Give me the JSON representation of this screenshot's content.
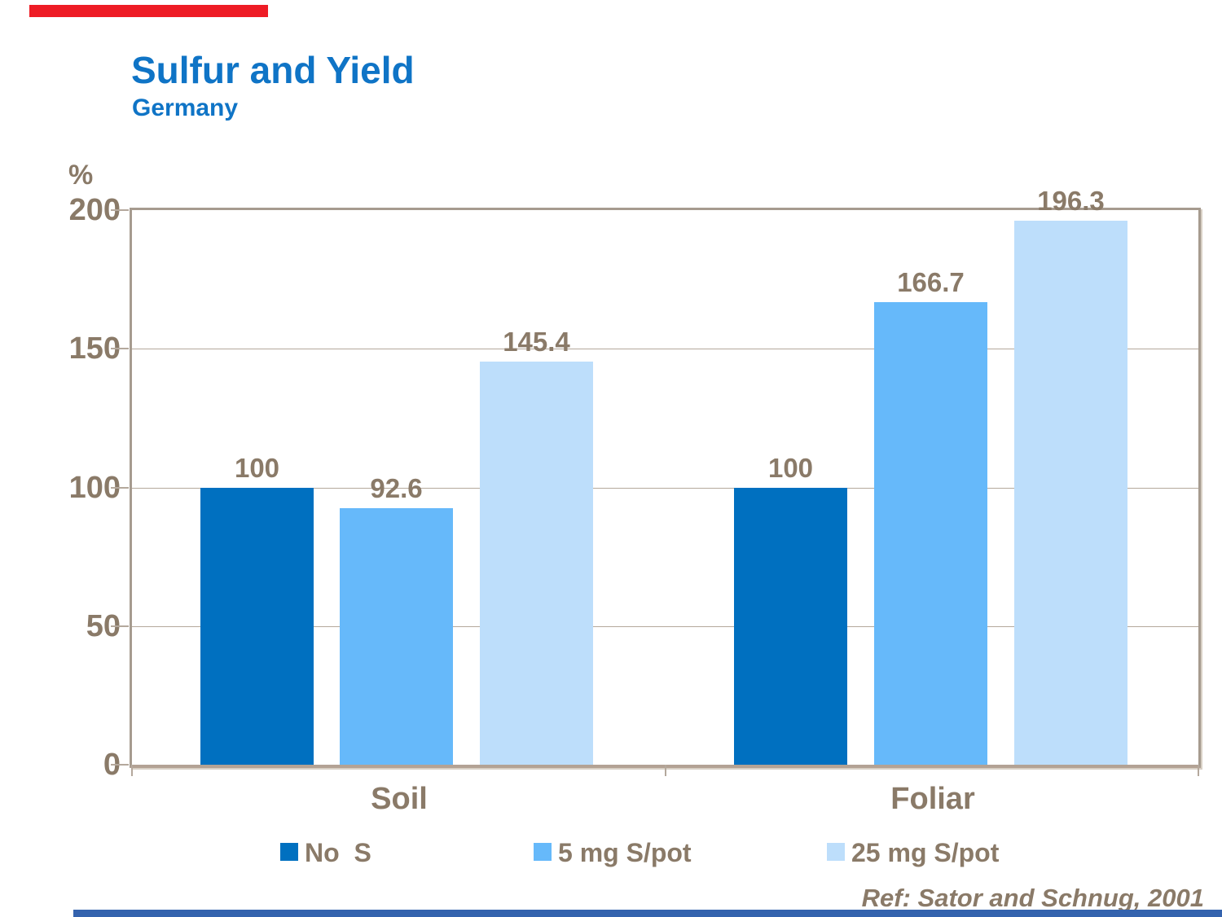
{
  "slide": {
    "title": "Sulfur and Yield",
    "subtitle": "Germany",
    "reference": "Ref: Sator and Schnug, 2001",
    "top_accent_color": "#EE1C25",
    "bottom_accent_color": "#3463AE"
  },
  "chart_data": {
    "type": "bar",
    "title": "Sulfur and Yield",
    "subtitle": "Germany",
    "xlabel": "",
    "ylabel": "%",
    "ylim": [
      0,
      200
    ],
    "yticks": [
      0,
      50,
      100,
      150,
      200
    ],
    "grid": true,
    "legend_position": "bottom",
    "categories": [
      "Soil",
      "Foliar"
    ],
    "series": [
      {
        "name": "No  S",
        "color": "#0070C0",
        "values": [
          100,
          100
        ]
      },
      {
        "name": "5 mg S/pot",
        "color": "#66B9FA",
        "values": [
          92.6,
          166.7
        ]
      },
      {
        "name": "25 mg S/pot",
        "color": "#BDDEFB",
        "values": [
          145.4,
          196.3
        ]
      }
    ],
    "text_color": "#8A7A68",
    "axis_color": "#AFA294"
  }
}
